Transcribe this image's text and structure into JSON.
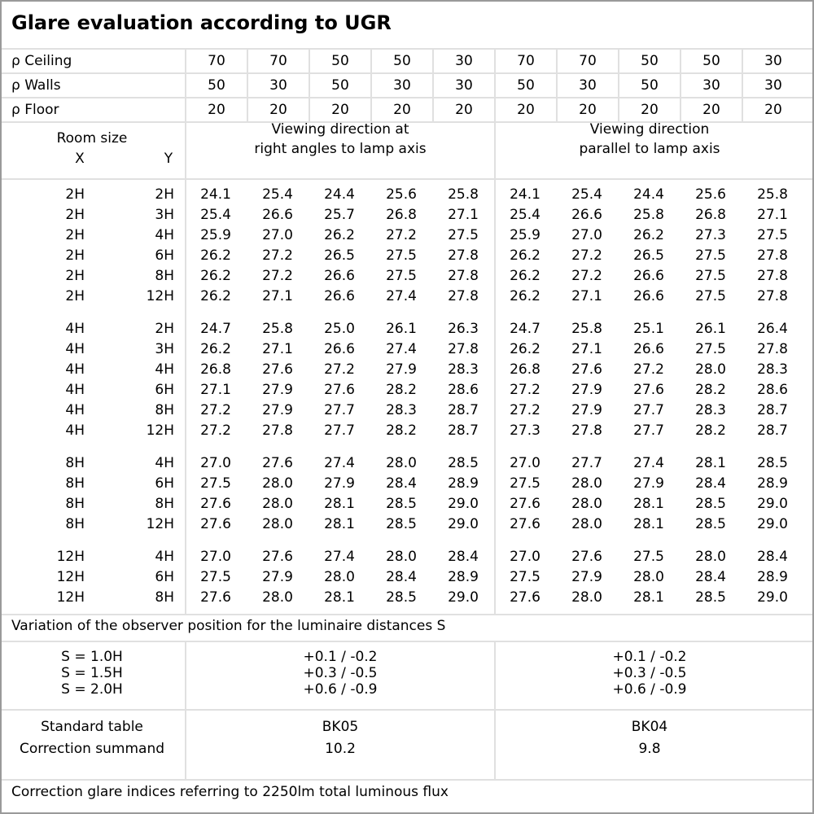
{
  "title": "Glare evaluation according to UGR",
  "reflectances": [
    {
      "label": "ρ Ceiling",
      "values": [
        "70",
        "70",
        "50",
        "50",
        "30",
        "70",
        "70",
        "50",
        "50",
        "30"
      ]
    },
    {
      "label": "ρ Walls",
      "values": [
        "50",
        "30",
        "50",
        "30",
        "30",
        "50",
        "30",
        "50",
        "30",
        "30"
      ]
    },
    {
      "label": "ρ Floor",
      "values": [
        "20",
        "20",
        "20",
        "20",
        "20",
        "20",
        "20",
        "20",
        "20",
        "20"
      ]
    }
  ],
  "header": {
    "room_size": "Room size",
    "x": "X",
    "y": "Y",
    "dir1_line1": "Viewing direction at",
    "dir1_line2": "right angles to lamp axis",
    "dir2_line1": "Viewing direction",
    "dir2_line2": "parallel to lamp axis"
  },
  "groups": [
    [
      [
        "2H",
        "2H",
        "24.1",
        "25.4",
        "24.4",
        "25.6",
        "25.8",
        "24.1",
        "25.4",
        "24.4",
        "25.6",
        "25.8"
      ],
      [
        "2H",
        "3H",
        "25.4",
        "26.6",
        "25.7",
        "26.8",
        "27.1",
        "25.4",
        "26.6",
        "25.8",
        "26.8",
        "27.1"
      ],
      [
        "2H",
        "4H",
        "25.9",
        "27.0",
        "26.2",
        "27.2",
        "27.5",
        "25.9",
        "27.0",
        "26.2",
        "27.3",
        "27.5"
      ],
      [
        "2H",
        "6H",
        "26.2",
        "27.2",
        "26.5",
        "27.5",
        "27.8",
        "26.2",
        "27.2",
        "26.5",
        "27.5",
        "27.8"
      ],
      [
        "2H",
        "8H",
        "26.2",
        "27.2",
        "26.6",
        "27.5",
        "27.8",
        "26.2",
        "27.2",
        "26.6",
        "27.5",
        "27.8"
      ],
      [
        "2H",
        "12H",
        "26.2",
        "27.1",
        "26.6",
        "27.4",
        "27.8",
        "26.2",
        "27.1",
        "26.6",
        "27.5",
        "27.8"
      ]
    ],
    [
      [
        "4H",
        "2H",
        "24.7",
        "25.8",
        "25.0",
        "26.1",
        "26.3",
        "24.7",
        "25.8",
        "25.1",
        "26.1",
        "26.4"
      ],
      [
        "4H",
        "3H",
        "26.2",
        "27.1",
        "26.6",
        "27.4",
        "27.8",
        "26.2",
        "27.1",
        "26.6",
        "27.5",
        "27.8"
      ],
      [
        "4H",
        "4H",
        "26.8",
        "27.6",
        "27.2",
        "27.9",
        "28.3",
        "26.8",
        "27.6",
        "27.2",
        "28.0",
        "28.3"
      ],
      [
        "4H",
        "6H",
        "27.1",
        "27.9",
        "27.6",
        "28.2",
        "28.6",
        "27.2",
        "27.9",
        "27.6",
        "28.2",
        "28.6"
      ],
      [
        "4H",
        "8H",
        "27.2",
        "27.9",
        "27.7",
        "28.3",
        "28.7",
        "27.2",
        "27.9",
        "27.7",
        "28.3",
        "28.7"
      ],
      [
        "4H",
        "12H",
        "27.2",
        "27.8",
        "27.7",
        "28.2",
        "28.7",
        "27.3",
        "27.8",
        "27.7",
        "28.2",
        "28.7"
      ]
    ],
    [
      [
        "8H",
        "4H",
        "27.0",
        "27.6",
        "27.4",
        "28.0",
        "28.5",
        "27.0",
        "27.7",
        "27.4",
        "28.1",
        "28.5"
      ],
      [
        "8H",
        "6H",
        "27.5",
        "28.0",
        "27.9",
        "28.4",
        "28.9",
        "27.5",
        "28.0",
        "27.9",
        "28.4",
        "28.9"
      ],
      [
        "8H",
        "8H",
        "27.6",
        "28.0",
        "28.1",
        "28.5",
        "29.0",
        "27.6",
        "28.0",
        "28.1",
        "28.5",
        "29.0"
      ],
      [
        "8H",
        "12H",
        "27.6",
        "28.0",
        "28.1",
        "28.5",
        "29.0",
        "27.6",
        "28.0",
        "28.1",
        "28.5",
        "29.0"
      ]
    ],
    [
      [
        "12H",
        "4H",
        "27.0",
        "27.6",
        "27.4",
        "28.0",
        "28.4",
        "27.0",
        "27.6",
        "27.5",
        "28.0",
        "28.4"
      ],
      [
        "12H",
        "6H",
        "27.5",
        "27.9",
        "28.0",
        "28.4",
        "28.9",
        "27.5",
        "27.9",
        "28.0",
        "28.4",
        "28.9"
      ],
      [
        "12H",
        "8H",
        "27.6",
        "28.0",
        "28.1",
        "28.5",
        "29.0",
        "27.6",
        "28.0",
        "28.1",
        "28.5",
        "29.0"
      ]
    ]
  ],
  "variation": {
    "label": "Variation of the observer position for the luminaire distances S",
    "rows": [
      {
        "s": "S = 1.0H",
        "dir1": "+0.1 / -0.2",
        "dir2": "+0.1 / -0.2"
      },
      {
        "s": "S = 1.5H",
        "dir1": "+0.3 / -0.5",
        "dir2": "+0.3 / -0.5"
      },
      {
        "s": "S = 2.0H",
        "dir1": "+0.6 / -0.9",
        "dir2": "+0.6 / -0.9"
      }
    ]
  },
  "standard": {
    "label1": "Standard table",
    "label2": "Correction summand",
    "dir1_table": "BK05",
    "dir1_summand": "10.2",
    "dir2_table": "BK04",
    "dir2_summand": "9.8"
  },
  "footer": "Correction glare indices referring to 2250lm total luminous flux"
}
